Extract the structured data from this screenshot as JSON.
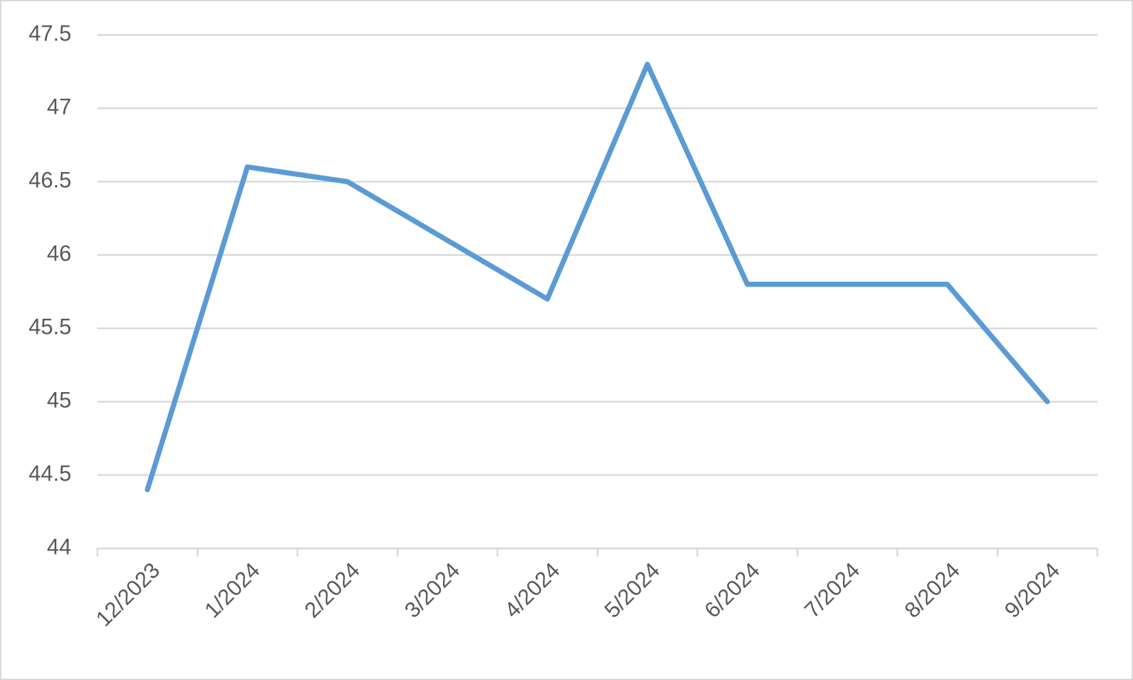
{
  "chart_data": {
    "type": "line",
    "categories": [
      "12/2023",
      "1/2024",
      "2/2024",
      "3/2024",
      "4/2024",
      "5/2024",
      "6/2024",
      "7/2024",
      "8/2024",
      "9/2024"
    ],
    "series": [
      {
        "color": "#5b9bd5",
        "values": [
          44.4,
          46.6,
          46.5,
          46.1,
          45.7,
          47.3,
          45.8,
          45.8,
          45.8,
          45.0
        ]
      }
    ],
    "ylim": [
      44,
      47.5
    ],
    "yticks": [
      44,
      44.5,
      45,
      45.5,
      46,
      46.5,
      47,
      47.5
    ],
    "grid": true
  }
}
